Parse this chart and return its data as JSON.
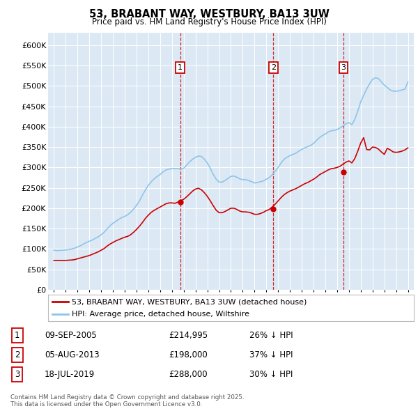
{
  "title": "53, BRABANT WAY, WESTBURY, BA13 3UW",
  "subtitle": "Price paid vs. HM Land Registry's House Price Index (HPI)",
  "background_color": "#dce9f5",
  "plot_bg_color": "#dce9f5",
  "red_line_label": "53, BRABANT WAY, WESTBURY, BA13 3UW (detached house)",
  "blue_line_label": "HPI: Average price, detached house, Wiltshire",
  "yticks": [
    0,
    50000,
    100000,
    150000,
    200000,
    250000,
    300000,
    350000,
    400000,
    450000,
    500000,
    550000,
    600000
  ],
  "xlim_start": 1994.5,
  "xlim_end": 2025.5,
  "ylim": [
    0,
    630000
  ],
  "transactions": [
    {
      "num": 1,
      "date": "09-SEP-2005",
      "price": 214995,
      "pct": "26%",
      "year": 2005.69
    },
    {
      "num": 2,
      "date": "05-AUG-2013",
      "price": 198000,
      "pct": "37%",
      "year": 2013.59
    },
    {
      "num": 3,
      "date": "18-JUL-2019",
      "price": 288000,
      "pct": "30%",
      "year": 2019.54
    }
  ],
  "footer": "Contains HM Land Registry data © Crown copyright and database right 2025.\nThis data is licensed under the Open Government Licence v3.0.",
  "hpi_x": [
    1995.0,
    1995.25,
    1995.5,
    1995.75,
    1996.0,
    1996.25,
    1996.5,
    1996.75,
    1997.0,
    1997.25,
    1997.5,
    1997.75,
    1998.0,
    1998.25,
    1998.5,
    1998.75,
    1999.0,
    1999.25,
    1999.5,
    1999.75,
    2000.0,
    2000.25,
    2000.5,
    2000.75,
    2001.0,
    2001.25,
    2001.5,
    2001.75,
    2002.0,
    2002.25,
    2002.5,
    2002.75,
    2003.0,
    2003.25,
    2003.5,
    2003.75,
    2004.0,
    2004.25,
    2004.5,
    2004.75,
    2005.0,
    2005.25,
    2005.5,
    2005.75,
    2006.0,
    2006.25,
    2006.5,
    2006.75,
    2007.0,
    2007.25,
    2007.5,
    2007.75,
    2008.0,
    2008.25,
    2008.5,
    2008.75,
    2009.0,
    2009.25,
    2009.5,
    2009.75,
    2010.0,
    2010.25,
    2010.5,
    2010.75,
    2011.0,
    2011.25,
    2011.5,
    2011.75,
    2012.0,
    2012.25,
    2012.5,
    2012.75,
    2013.0,
    2013.25,
    2013.5,
    2013.75,
    2014.0,
    2014.25,
    2014.5,
    2014.75,
    2015.0,
    2015.25,
    2015.5,
    2015.75,
    2016.0,
    2016.25,
    2016.5,
    2016.75,
    2017.0,
    2017.25,
    2017.5,
    2017.75,
    2018.0,
    2018.25,
    2018.5,
    2018.75,
    2019.0,
    2019.25,
    2019.5,
    2019.75,
    2020.0,
    2020.25,
    2020.5,
    2020.75,
    2021.0,
    2021.25,
    2021.5,
    2021.75,
    2022.0,
    2022.25,
    2022.5,
    2022.75,
    2023.0,
    2023.25,
    2023.5,
    2023.75,
    2024.0,
    2024.25,
    2024.5,
    2024.75,
    2025.0
  ],
  "hpi_y": [
    97000,
    96000,
    96500,
    97000,
    97500,
    98500,
    100000,
    102000,
    105000,
    108000,
    112000,
    116000,
    119000,
    122000,
    126000,
    130000,
    135000,
    141000,
    149000,
    157000,
    163000,
    168000,
    173000,
    177000,
    180000,
    184000,
    190000,
    198000,
    207000,
    218000,
    232000,
    245000,
    256000,
    265000,
    272000,
    278000,
    283000,
    289000,
    294000,
    296000,
    297000,
    297000,
    297000,
    296000,
    298000,
    306000,
    314000,
    320000,
    325000,
    328000,
    327000,
    320000,
    311000,
    298000,
    283000,
    271000,
    264000,
    264000,
    268000,
    273000,
    278000,
    279000,
    276000,
    272000,
    270000,
    270000,
    268000,
    265000,
    262000,
    263000,
    265000,
    267000,
    271000,
    275000,
    282000,
    291000,
    300000,
    311000,
    320000,
    325000,
    329000,
    332000,
    335000,
    340000,
    344000,
    348000,
    351000,
    354000,
    359000,
    366000,
    373000,
    378000,
    382000,
    387000,
    390000,
    391000,
    393000,
    397000,
    402000,
    407000,
    410000,
    405000,
    418000,
    438000,
    461000,
    477000,
    492000,
    505000,
    516000,
    520000,
    518000,
    510000,
    502000,
    496000,
    490000,
    487000,
    487000,
    488000,
    490000,
    492000,
    510000
  ],
  "red_x": [
    1995.0,
    1995.25,
    1995.5,
    1995.75,
    1996.0,
    1996.25,
    1996.5,
    1996.75,
    1997.0,
    1997.25,
    1997.5,
    1997.75,
    1998.0,
    1998.25,
    1998.5,
    1998.75,
    1999.0,
    1999.25,
    1999.5,
    1999.75,
    2000.0,
    2000.25,
    2000.5,
    2000.75,
    2001.0,
    2001.25,
    2001.5,
    2001.75,
    2002.0,
    2002.25,
    2002.5,
    2002.75,
    2003.0,
    2003.25,
    2003.5,
    2003.75,
    2004.0,
    2004.25,
    2004.5,
    2004.75,
    2005.0,
    2005.25,
    2005.5,
    2005.75,
    2006.0,
    2006.25,
    2006.5,
    2006.75,
    2007.0,
    2007.25,
    2007.5,
    2007.75,
    2008.0,
    2008.25,
    2008.5,
    2008.75,
    2009.0,
    2009.25,
    2009.5,
    2009.75,
    2010.0,
    2010.25,
    2010.5,
    2010.75,
    2011.0,
    2011.25,
    2011.5,
    2011.75,
    2012.0,
    2012.25,
    2012.5,
    2012.75,
    2013.0,
    2013.25,
    2013.5,
    2013.75,
    2014.0,
    2014.25,
    2014.5,
    2014.75,
    2015.0,
    2015.25,
    2015.5,
    2015.75,
    2016.0,
    2016.25,
    2016.5,
    2016.75,
    2017.0,
    2017.25,
    2017.5,
    2017.75,
    2018.0,
    2018.25,
    2018.5,
    2018.75,
    2019.0,
    2019.25,
    2019.5,
    2019.75,
    2020.0,
    2020.25,
    2020.5,
    2020.75,
    2021.0,
    2021.25,
    2021.5,
    2021.75,
    2022.0,
    2022.25,
    2022.5,
    2022.75,
    2023.0,
    2023.25,
    2023.5,
    2023.75,
    2024.0,
    2024.25,
    2024.5,
    2024.75,
    2025.0
  ],
  "red_y": [
    72000,
    72000,
    72000,
    72000,
    72000,
    72500,
    73000,
    74000,
    76000,
    78000,
    80000,
    82000,
    84000,
    87000,
    90000,
    93000,
    97000,
    101000,
    107000,
    112000,
    116000,
    120000,
    123000,
    126000,
    129000,
    131000,
    135000,
    141000,
    148000,
    156000,
    165000,
    175000,
    183000,
    190000,
    195000,
    199000,
    203000,
    207000,
    211000,
    213000,
    213000,
    212000,
    215000,
    218000,
    222000,
    228000,
    235000,
    242000,
    247000,
    249000,
    245000,
    238000,
    229000,
    218000,
    206000,
    195000,
    189000,
    189000,
    192000,
    196000,
    200000,
    200000,
    197000,
    193000,
    191000,
    191000,
    190000,
    188000,
    185000,
    185000,
    187000,
    190000,
    194000,
    197000,
    203000,
    210000,
    218000,
    226000,
    233000,
    238000,
    242000,
    245000,
    248000,
    252000,
    256000,
    260000,
    263000,
    267000,
    271000,
    276000,
    282000,
    286000,
    290000,
    294000,
    297000,
    298000,
    300000,
    303000,
    308000,
    313000,
    316000,
    311000,
    322000,
    340000,
    360000,
    373000,
    344000,
    343000,
    350000,
    349000,
    345000,
    338000,
    332000,
    347000,
    343000,
    338000,
    337000,
    338000,
    340000,
    343000,
    348000
  ]
}
